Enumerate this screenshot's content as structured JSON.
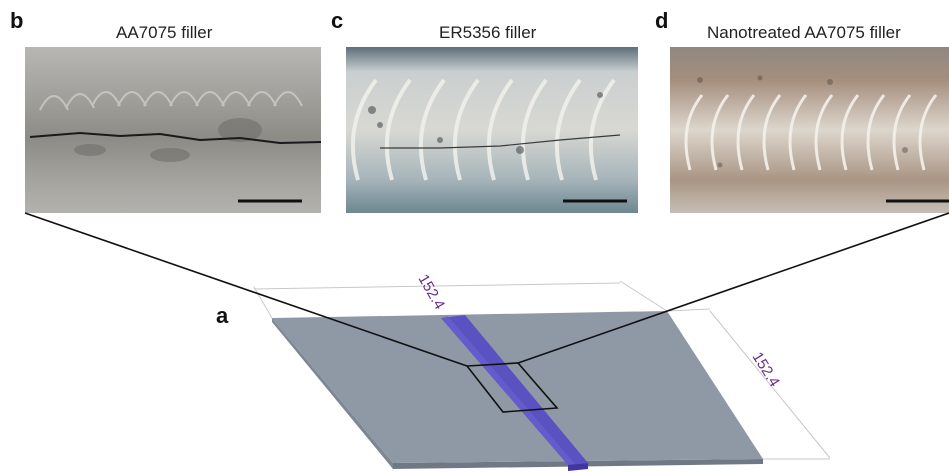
{
  "panels": {
    "a": {
      "letter": "a"
    },
    "b": {
      "letter": "b",
      "title": "AA7075 filler"
    },
    "c": {
      "letter": "c",
      "title": "ER5356 filler"
    },
    "d": {
      "letter": "d",
      "title": "Nanotreated AA7075 filler"
    }
  },
  "plate": {
    "dimension_top": "152.4",
    "dimension_right": "152.4"
  },
  "colors": {
    "plate_top": "#8f99a6",
    "plate_edge": "#6f7986",
    "weld_bead": "#5b52c2",
    "weld_bead_edge": "#3f37a0",
    "dimension_text": "#6a2a8c",
    "zoom_lines": "#111111",
    "photo_b": "#a9a9a6",
    "photo_c": "#b9c3c8",
    "photo_d": "#b7aaa0"
  }
}
